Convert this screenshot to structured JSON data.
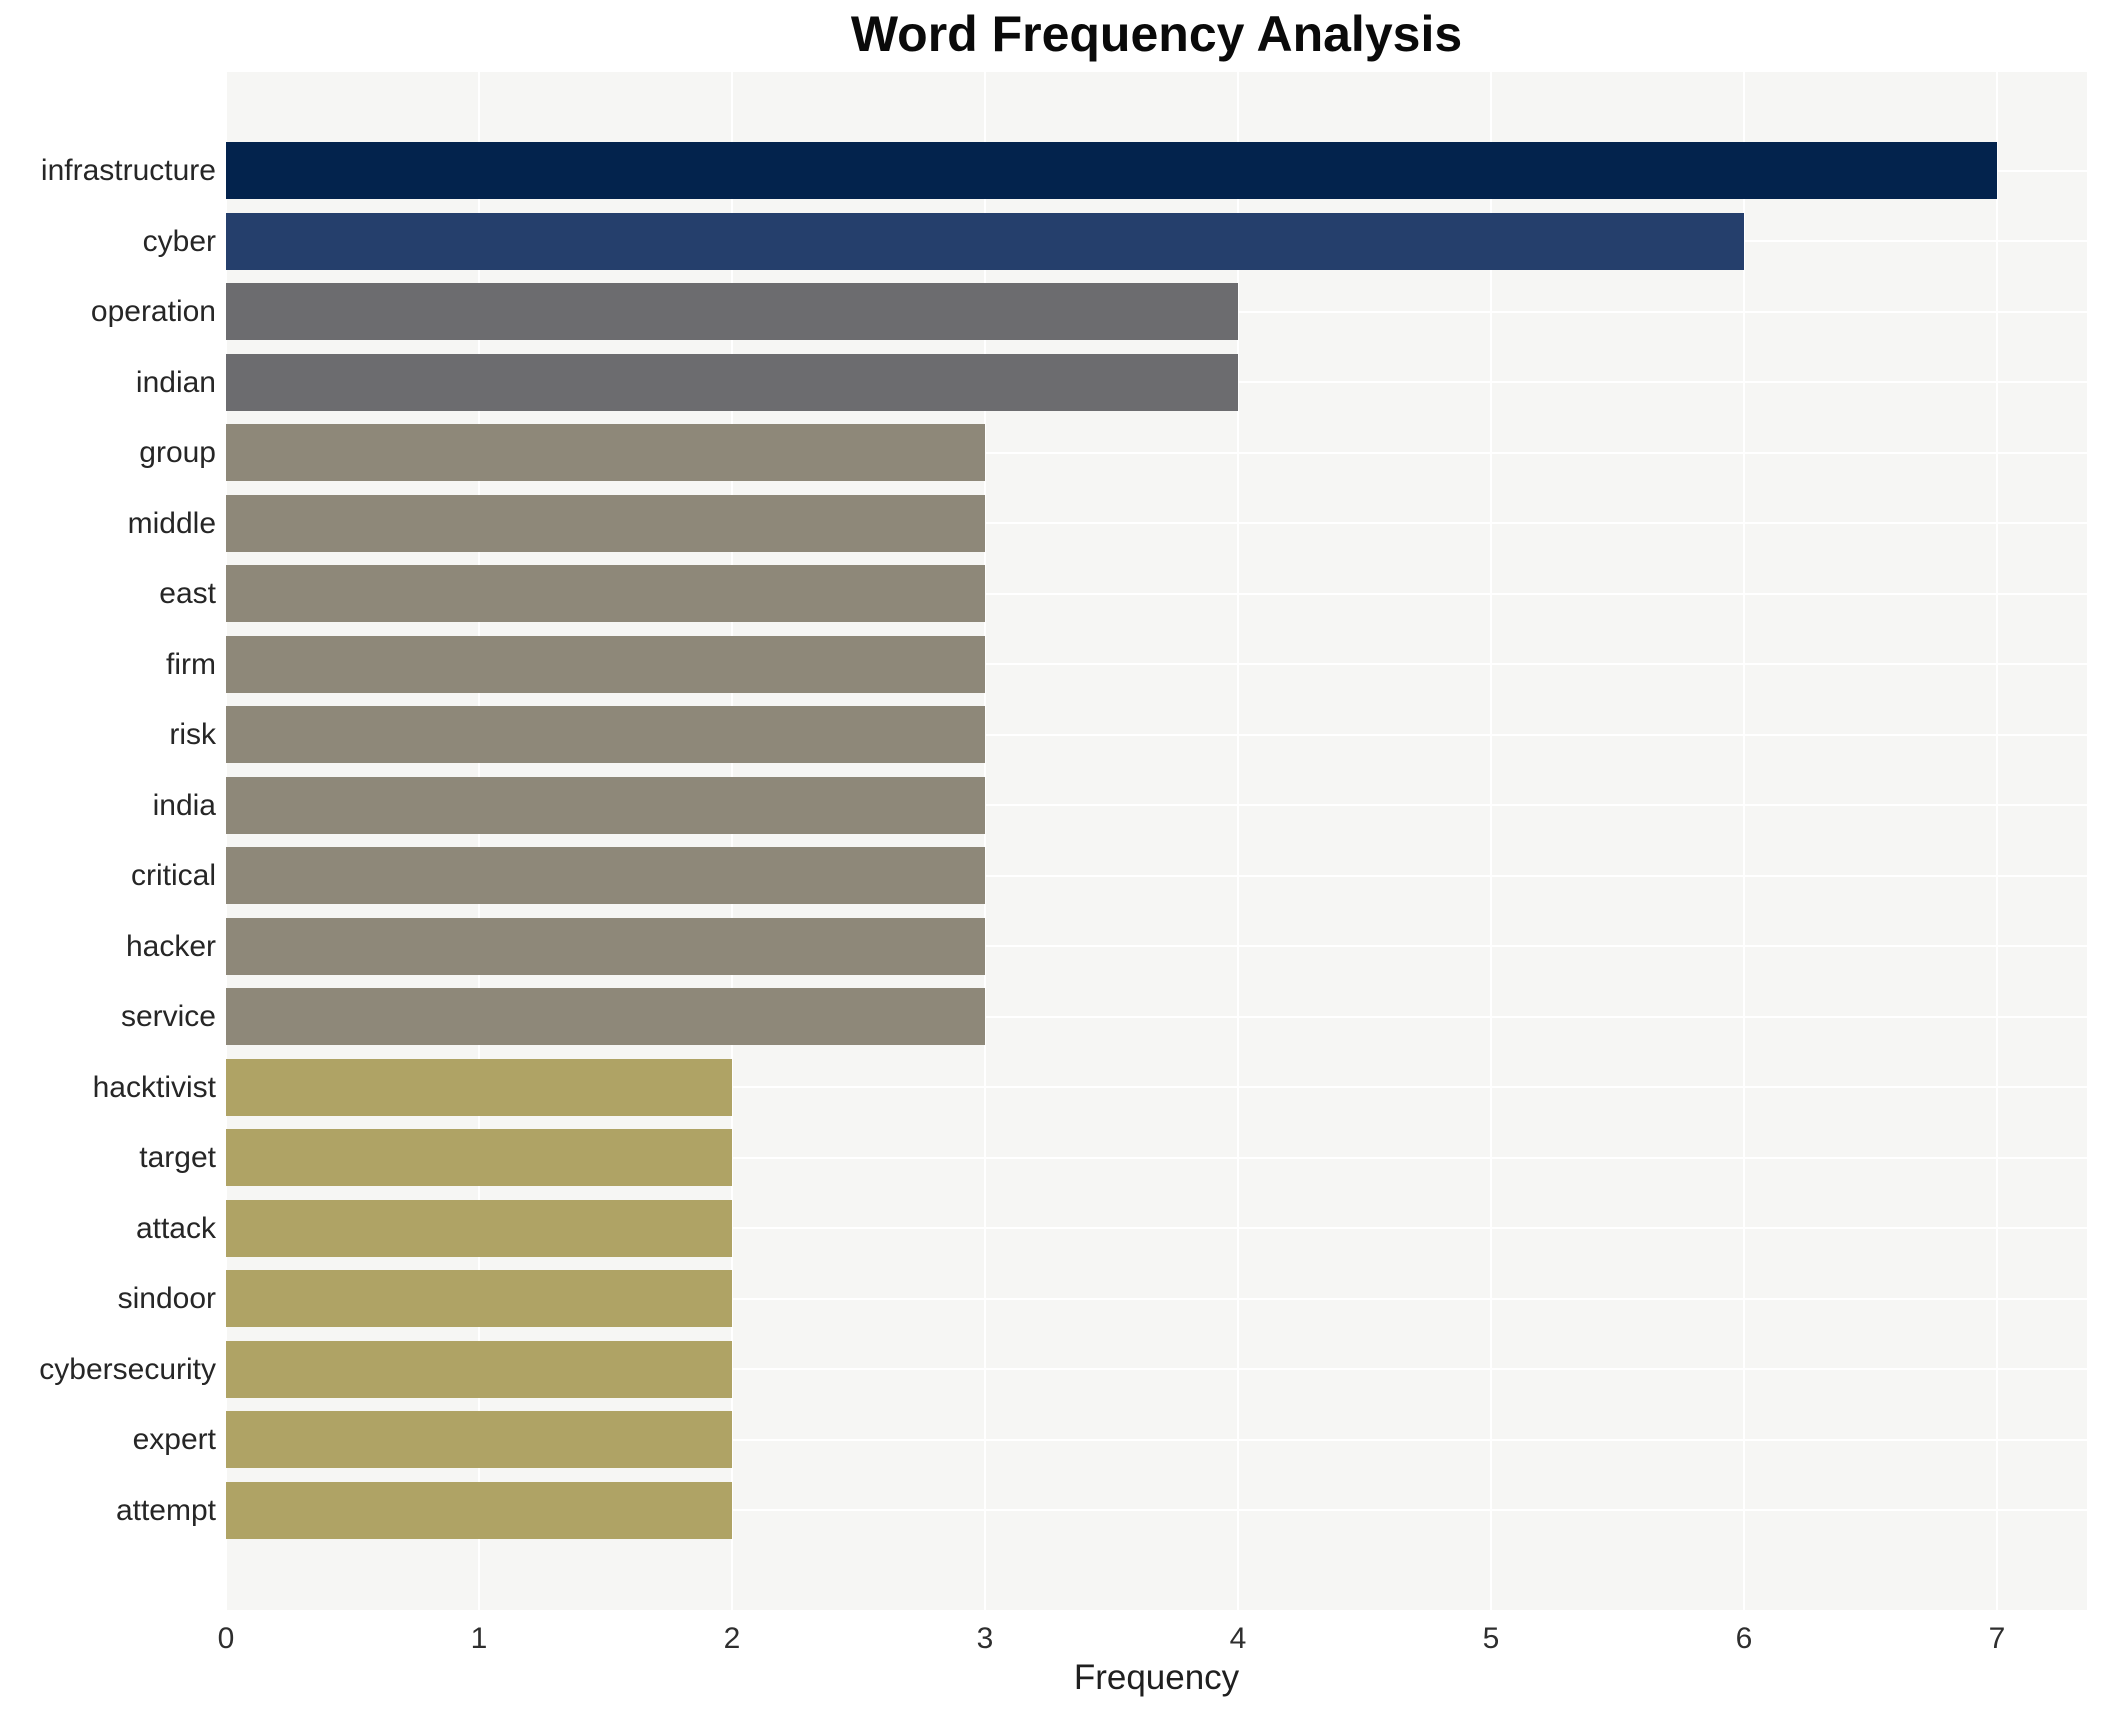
{
  "chart_data": {
    "type": "bar",
    "orientation": "horizontal",
    "title": "Word Frequency Analysis",
    "xlabel": "Frequency",
    "ylabel": "",
    "categories": [
      "infrastructure",
      "cyber",
      "operation",
      "indian",
      "group",
      "middle",
      "east",
      "firm",
      "risk",
      "india",
      "critical",
      "hacker",
      "service",
      "hacktivist",
      "target",
      "attack",
      "sindoor",
      "cybersecurity",
      "expert",
      "attempt"
    ],
    "values": [
      7,
      6,
      4,
      4,
      3,
      3,
      3,
      3,
      3,
      3,
      3,
      3,
      3,
      2,
      2,
      2,
      2,
      2,
      2,
      2
    ],
    "x_ticks": [
      "0",
      "1",
      "2",
      "3",
      "4",
      "5",
      "6",
      "7"
    ],
    "xlim": [
      0,
      7.35
    ],
    "grid": "white gridlines, vertical at integer ticks, horizontal at bar centers",
    "legend": "none",
    "colors": {
      "plot_background": "#f6f6f4",
      "grid_color": "#ffffff",
      "bar_color_by_value": {
        "7": "#03234d",
        "6": "#253f6c",
        "4": "#6c6c6f",
        "3": "#8e8879",
        "2": "#afa365"
      },
      "label_color": "#262626",
      "title_color": "#0a0a0a"
    }
  }
}
